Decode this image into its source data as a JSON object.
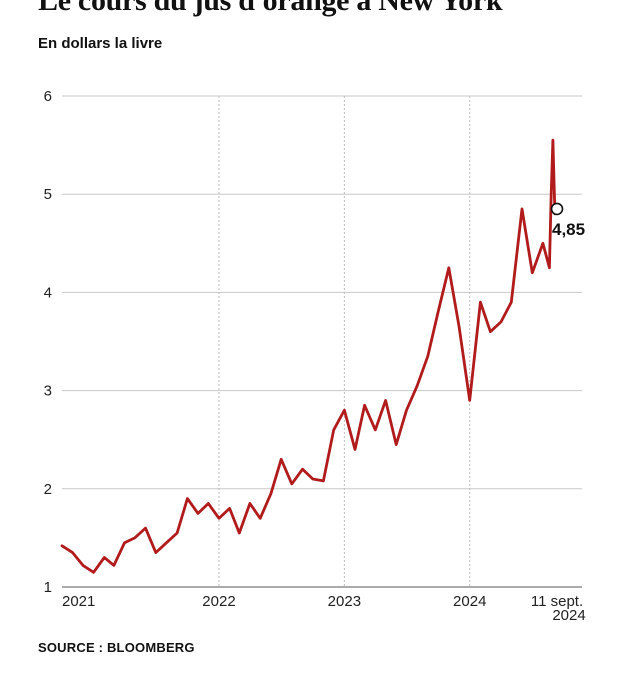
{
  "title": "Le cours du jus d'orange à New York",
  "subtitle": "En dollars la livre",
  "source": "SOURCE : BLOOMBERG",
  "chart_data": {
    "type": "line",
    "ylim": [
      1,
      6
    ],
    "yticks": [
      "1",
      "2",
      "3",
      "4",
      "5",
      "6"
    ],
    "xticks": [
      {
        "label": "2021",
        "x": "2021-01"
      },
      {
        "label": "2022",
        "x": "2022-01"
      },
      {
        "label": "2023",
        "x": "2023-01"
      },
      {
        "label": "2024",
        "x": "2024-01"
      },
      {
        "label": "11 sept.",
        "label2": "2024",
        "x": "2024-09-11"
      }
    ],
    "grid": "horizontal",
    "line_color": "#b11b1b",
    "end_marker": {
      "x": "2024-09-11",
      "y": 4.85,
      "label": "4,85"
    },
    "series": [
      {
        "x": [
          "2020-10",
          "2020-11",
          "2020-12",
          "2021-01",
          "2021-02",
          "2021-03",
          "2021-04",
          "2021-05",
          "2021-06",
          "2021-07",
          "2021-08",
          "2021-09",
          "2021-10",
          "2021-11",
          "2021-12",
          "2022-01",
          "2022-02",
          "2022-03",
          "2022-04",
          "2022-05",
          "2022-06",
          "2022-07",
          "2022-08",
          "2022-09",
          "2022-10",
          "2022-11",
          "2022-12",
          "2023-01",
          "2023-02",
          "2023-03",
          "2023-04",
          "2023-05",
          "2023-06",
          "2023-07",
          "2023-08",
          "2023-09",
          "2023-10",
          "2023-11",
          "2023-12",
          "2024-01",
          "2024-02",
          "2024-03",
          "2024-04",
          "2024-05",
          "2024-06",
          "2024-07",
          "2024-08",
          "2024-08-20",
          "2024-08-25",
          "2024-08-30",
          "2024-09-05",
          "2024-09-11"
        ],
        "y": [
          1.42,
          1.35,
          1.22,
          1.15,
          1.3,
          1.22,
          1.45,
          1.5,
          1.6,
          1.35,
          1.45,
          1.55,
          1.9,
          1.75,
          1.85,
          1.7,
          1.8,
          1.55,
          1.85,
          1.7,
          1.95,
          2.3,
          2.05,
          2.2,
          2.1,
          2.08,
          2.6,
          2.8,
          2.4,
          2.85,
          2.6,
          2.9,
          2.45,
          2.8,
          3.05,
          3.35,
          3.8,
          4.25,
          3.65,
          2.9,
          3.9,
          3.6,
          3.7,
          3.9,
          4.85,
          4.2,
          4.5,
          4.25,
          5.0,
          5.55,
          4.8,
          4.85
        ]
      }
    ]
  }
}
